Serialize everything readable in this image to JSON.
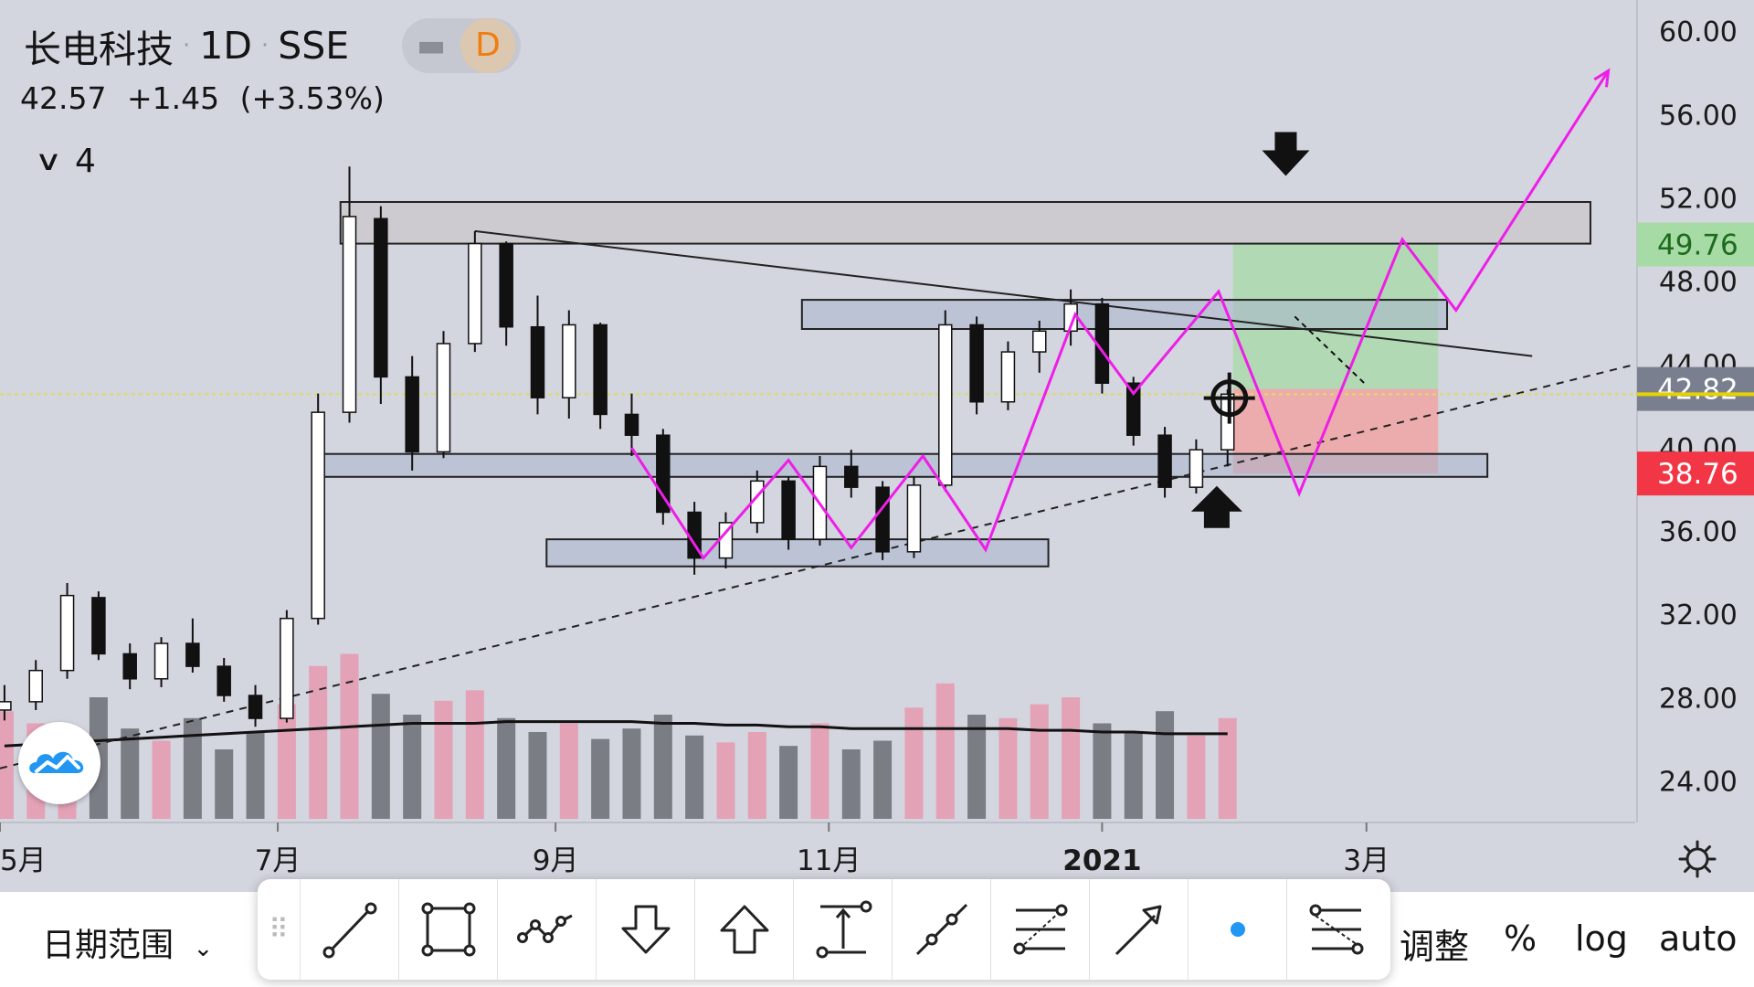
{
  "header": {
    "symbol": "长电科技",
    "interval": "1D",
    "exchange": "SSE",
    "mode_minus": "▬",
    "mode_badge": "D",
    "last_price": "42.57",
    "change": "+1.45",
    "change_pct": "(+3.53%)",
    "indicator_count": "4"
  },
  "price_axis": {
    "ticks": [
      "60.00",
      "56.00",
      "52.00",
      "48.00",
      "44.00",
      "40.00",
      "36.00",
      "32.00",
      "28.00",
      "24.00"
    ],
    "badges": [
      {
        "label": "49.76",
        "value": 49.76,
        "bg": "#a6dba6",
        "fg": "#1e6b1e"
      },
      {
        "label": "42.82",
        "value": 42.82,
        "bg": "#7a7f90",
        "fg": "#ffffff"
      },
      {
        "label": "38.76",
        "value": 38.76,
        "bg": "#f23645",
        "fg": "#ffffff"
      }
    ]
  },
  "time_axis": {
    "ticks": [
      {
        "label": "5月",
        "bold": false
      },
      {
        "label": "7月",
        "bold": false
      },
      {
        "label": "9月",
        "bold": false
      },
      {
        "label": "11月",
        "bold": false
      },
      {
        "label": "2021",
        "bold": true
      },
      {
        "label": "3月",
        "bold": false
      }
    ]
  },
  "bottom_bar": {
    "date_range": "日期范围",
    "adjust": "调整",
    "percent": "%",
    "log": "log",
    "auto": "auto"
  },
  "toolbar": {
    "tools": [
      "trend-line-icon",
      "rectangle-icon",
      "path-icon",
      "arrow-down-icon",
      "arrow-up-icon",
      "price-range-icon",
      "ray-icon",
      "fib-retracement-icon",
      "arrow-marker-icon",
      "dot-icon",
      "settings-lines-icon"
    ]
  },
  "colors": {
    "background": "#d3d5df",
    "bull": "#ffffff",
    "bear": "#111111",
    "volume_up": "#e3a2b6",
    "volume_down": "#7b7d85",
    "magenta": "#ee1ee8",
    "target_zone": "#a6dba6",
    "stop_zone": "#f2a0a0",
    "last_price_line": "#dede58"
  },
  "chart_data": {
    "type": "candlestick",
    "symbol": "长电科技",
    "interval": "1D",
    "y_range": [
      22.0,
      61.5
    ],
    "x_axis": "date",
    "x_range": [
      "2020-04-30",
      "2021-04-30"
    ],
    "candles": [
      {
        "date": "2020-05-01",
        "open": 27.4,
        "high": 28.6,
        "low": 26.9,
        "close": 27.8
      },
      {
        "date": "2020-05-08",
        "open": 27.8,
        "high": 29.8,
        "low": 27.4,
        "close": 29.3
      },
      {
        "date": "2020-05-15",
        "open": 29.3,
        "high": 33.5,
        "low": 28.9,
        "close": 32.9
      },
      {
        "date": "2020-05-22",
        "open": 32.8,
        "high": 33.1,
        "low": 29.8,
        "close": 30.1
      },
      {
        "date": "2020-05-29",
        "open": 30.1,
        "high": 30.6,
        "low": 28.4,
        "close": 28.9
      },
      {
        "date": "2020-06-05",
        "open": 28.9,
        "high": 30.9,
        "low": 28.5,
        "close": 30.6
      },
      {
        "date": "2020-06-12",
        "open": 30.6,
        "high": 31.8,
        "low": 29.2,
        "close": 29.5
      },
      {
        "date": "2020-06-19",
        "open": 29.5,
        "high": 29.9,
        "low": 27.8,
        "close": 28.1
      },
      {
        "date": "2020-06-26",
        "open": 28.1,
        "high": 28.6,
        "low": 26.6,
        "close": 27.0
      },
      {
        "date": "2020-07-03",
        "open": 27.0,
        "high": 32.2,
        "low": 26.8,
        "close": 31.8
      },
      {
        "date": "2020-07-10",
        "open": 31.8,
        "high": 42.6,
        "low": 31.5,
        "close": 41.7
      },
      {
        "date": "2020-07-17",
        "open": 41.7,
        "high": 53.5,
        "low": 41.2,
        "close": 51.1
      },
      {
        "date": "2020-07-24",
        "open": 51.0,
        "high": 51.6,
        "low": 42.1,
        "close": 43.4
      },
      {
        "date": "2020-07-31",
        "open": 43.4,
        "high": 44.4,
        "low": 38.9,
        "close": 39.8
      },
      {
        "date": "2020-08-07",
        "open": 39.8,
        "high": 45.6,
        "low": 39.5,
        "close": 45.0
      },
      {
        "date": "2020-08-14",
        "open": 45.0,
        "high": 50.4,
        "low": 44.6,
        "close": 49.8
      },
      {
        "date": "2020-08-21",
        "open": 49.8,
        "high": 49.9,
        "low": 44.9,
        "close": 45.8
      },
      {
        "date": "2020-08-28",
        "open": 45.8,
        "high": 47.3,
        "low": 41.6,
        "close": 42.4
      },
      {
        "date": "2020-09-04",
        "open": 42.4,
        "high": 46.6,
        "low": 41.4,
        "close": 45.9
      },
      {
        "date": "2020-09-11",
        "open": 45.9,
        "high": 46.0,
        "low": 40.9,
        "close": 41.6
      },
      {
        "date": "2020-09-18",
        "open": 41.6,
        "high": 42.6,
        "low": 39.6,
        "close": 40.6
      },
      {
        "date": "2020-09-25",
        "open": 40.6,
        "high": 40.9,
        "low": 36.3,
        "close": 36.9
      },
      {
        "date": "2020-10-02",
        "open": 36.9,
        "high": 37.4,
        "low": 33.9,
        "close": 34.7
      },
      {
        "date": "2020-10-09",
        "open": 34.7,
        "high": 36.9,
        "low": 34.2,
        "close": 36.4
      },
      {
        "date": "2020-10-16",
        "open": 36.4,
        "high": 38.9,
        "low": 35.9,
        "close": 38.4
      },
      {
        "date": "2020-10-23",
        "open": 38.4,
        "high": 38.6,
        "low": 35.1,
        "close": 35.6
      },
      {
        "date": "2020-10-30",
        "open": 35.6,
        "high": 39.6,
        "low": 35.3,
        "close": 39.1
      },
      {
        "date": "2020-11-06",
        "open": 39.1,
        "high": 39.9,
        "low": 37.6,
        "close": 38.1
      },
      {
        "date": "2020-11-13",
        "open": 38.1,
        "high": 38.4,
        "low": 34.6,
        "close": 35.0
      },
      {
        "date": "2020-11-20",
        "open": 35.0,
        "high": 38.6,
        "low": 34.7,
        "close": 38.2
      },
      {
        "date": "2020-11-27",
        "open": 38.2,
        "high": 46.6,
        "low": 37.9,
        "close": 45.9
      },
      {
        "date": "2020-12-04",
        "open": 45.9,
        "high": 46.3,
        "low": 41.6,
        "close": 42.2
      },
      {
        "date": "2020-12-11",
        "open": 42.2,
        "high": 45.1,
        "low": 41.8,
        "close": 44.6
      },
      {
        "date": "2020-12-18",
        "open": 44.6,
        "high": 46.1,
        "low": 43.6,
        "close": 45.6
      },
      {
        "date": "2020-12-25",
        "open": 45.6,
        "high": 47.6,
        "low": 44.9,
        "close": 46.9
      },
      {
        "date": "2021-01-01",
        "open": 46.9,
        "high": 47.2,
        "low": 42.6,
        "close": 43.1
      },
      {
        "date": "2021-01-08",
        "open": 43.1,
        "high": 43.4,
        "low": 40.1,
        "close": 40.6
      },
      {
        "date": "2021-01-15",
        "open": 40.6,
        "high": 41.0,
        "low": 37.6,
        "close": 38.1
      },
      {
        "date": "2021-01-22",
        "open": 38.1,
        "high": 40.4,
        "low": 37.8,
        "close": 39.9
      },
      {
        "date": "2021-01-29",
        "open": 39.9,
        "high": 42.8,
        "low": 39.1,
        "close": 42.57
      }
    ],
    "volume": [
      62,
      55,
      48,
      70,
      52,
      45,
      58,
      40,
      50,
      66,
      88,
      95,
      72,
      60,
      68,
      74,
      58,
      50,
      55,
      46,
      52,
      60,
      48,
      44,
      50,
      42,
      55,
      40,
      45,
      64,
      78,
      60,
      58,
      66,
      70,
      55,
      50,
      62,
      48,
      58
    ],
    "volume_ma": [
      42,
      43,
      44,
      45,
      46,
      47,
      48,
      49,
      50,
      51,
      52,
      53,
      54,
      55,
      55,
      55,
      56,
      56,
      56,
      56,
      56,
      55,
      55,
      54,
      54,
      53,
      53,
      52,
      52,
      52,
      52,
      52,
      52,
      51,
      51,
      50,
      50,
      49,
      49,
      49
    ],
    "drawings": {
      "resistance_box": [
        49.8,
        51.8
      ],
      "mid_box": [
        45.7,
        47.1
      ],
      "support_box": [
        38.6,
        39.7
      ],
      "lower_box": [
        34.3,
        35.6
      ],
      "target_price": 49.76,
      "entry_price": 42.82,
      "stop_price": 38.76,
      "last_price": 42.57
    }
  }
}
